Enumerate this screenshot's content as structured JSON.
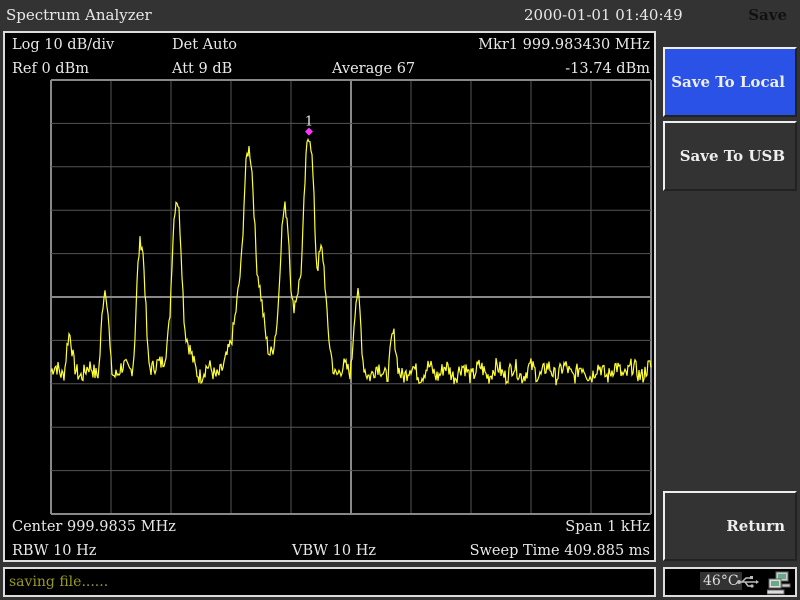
{
  "header": {
    "title": "Spectrum Analyzer",
    "datetime": "2000-01-01 01:40:49",
    "menu_title": "Save"
  },
  "screen": {
    "scale": "Log 10 dB/div",
    "detector": "Det Auto",
    "marker_label": "Mkr1  999.983430 MHz",
    "ref_level": "Ref 0 dBm",
    "attenuation": "Att 9 dB",
    "average": "Average 67",
    "marker_value": "-13.74 dBm",
    "center": "Center 999.9835 MHz",
    "span": "Span 1 kHz",
    "rbw": "RBW 10 Hz",
    "vbw": "VBW 10 Hz",
    "sweep_time": "Sweep Time 409.885 ms",
    "marker_number": "1"
  },
  "softkeys": [
    {
      "label": "Save To Local",
      "active": true
    },
    {
      "label": "Save To USB",
      "active": false
    },
    {
      "label": "Return",
      "active": false
    }
  ],
  "status": {
    "message": "saving file......",
    "temperature": "46°C"
  },
  "icons": {
    "usb": "usb-icon",
    "network": "network-computers-icon"
  },
  "colors": {
    "trace": "#ffff33",
    "marker": "#ff33ff",
    "active_softkey": "#2b52e6",
    "grid": "#555555",
    "status_text": "#9a9a1e"
  },
  "chart_data": {
    "type": "line",
    "xlim_mhz": [
      999.983,
      999.984
    ],
    "ylim_dbm": [
      -100,
      0
    ],
    "x_divisions": 10,
    "y_divisions": 10,
    "grid": true,
    "noise_floor_dbm": -74,
    "peaks": {
      "freq_mhz": [
        999.98303,
        999.98309,
        999.98315,
        999.98321,
        999.98343,
        999.98333,
        999.98339,
        999.98345,
        999.98351,
        999.98357
      ],
      "level_dbm": [
        -60,
        -49.5,
        -38.5,
        -28,
        -13.74,
        -15,
        -28.5,
        -39,
        -50,
        -60.5
      ]
    },
    "marker": {
      "freq_mhz": 999.98343,
      "level_dbm": -13.74
    }
  }
}
